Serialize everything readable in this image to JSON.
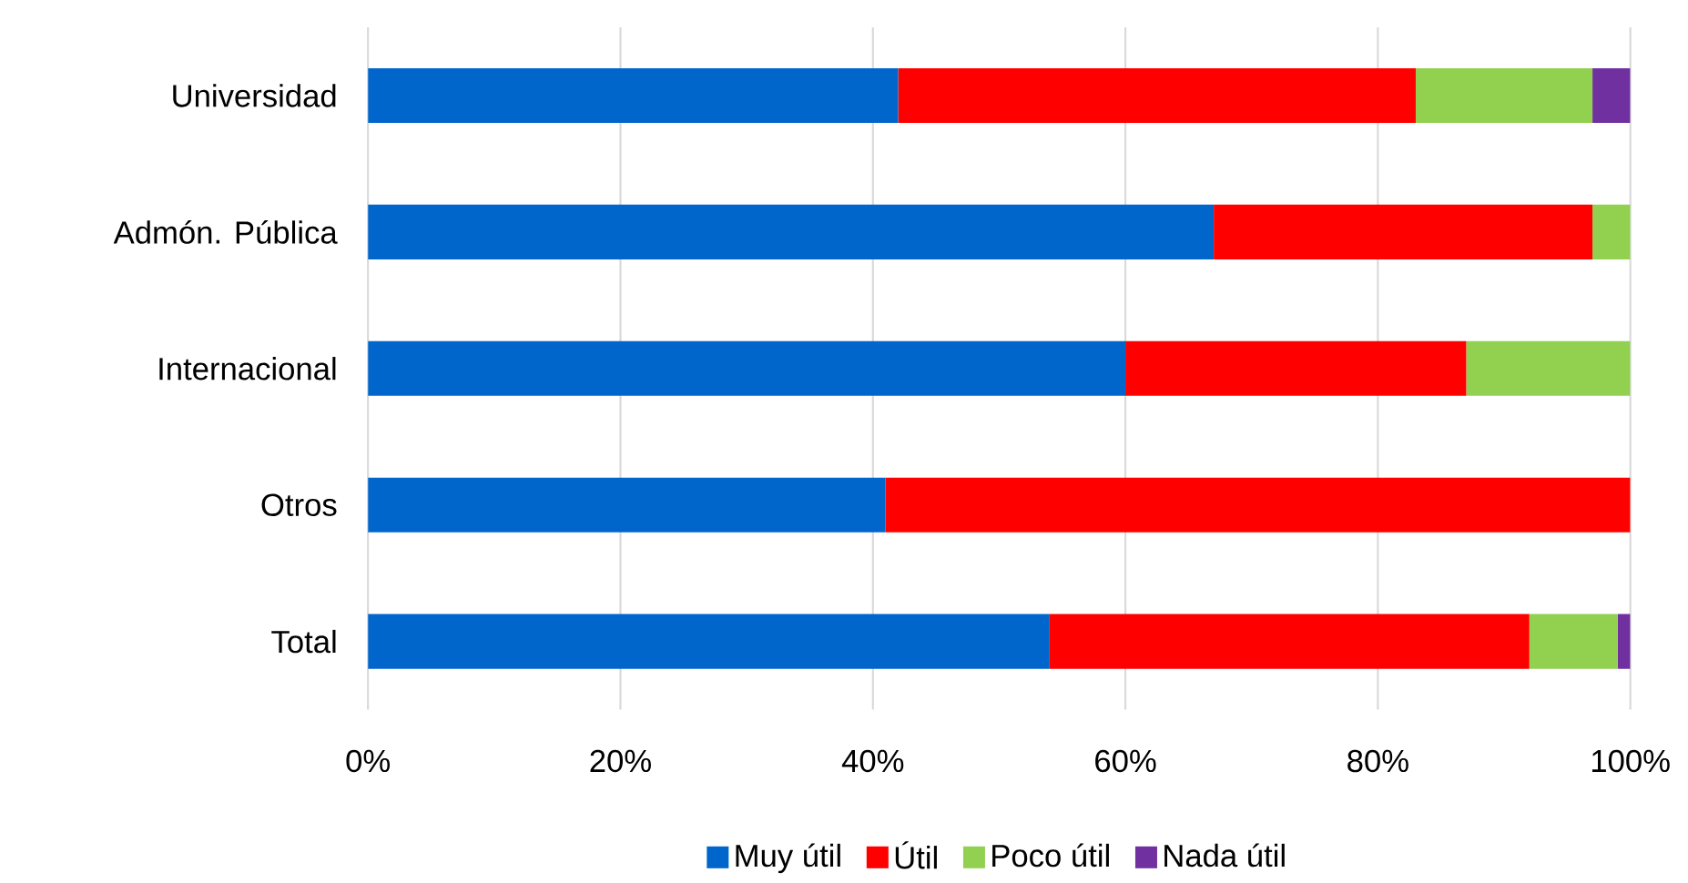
{
  "chart_data": {
    "type": "bar",
    "orientation": "horizontal",
    "stacked": true,
    "categories": [
      "Universidad",
      "Admón. Pública",
      "Internacional",
      "Otros",
      "Total"
    ],
    "series": [
      {
        "name": "Muy útil",
        "color": "#0066cc",
        "values": [
          42,
          67,
          60,
          41,
          54
        ]
      },
      {
        "name": "Útil",
        "color": "#ff0000",
        "values": [
          41,
          30,
          27,
          59,
          38
        ]
      },
      {
        "name": "Poco útil",
        "color": "#92d050",
        "values": [
          14,
          3,
          13,
          0,
          7
        ]
      },
      {
        "name": "Nada útil",
        "color": "#7030a0",
        "values": [
          3,
          0,
          0,
          0,
          1
        ]
      }
    ],
    "xlim": [
      0,
      100
    ],
    "xticks": [
      {
        "value": 0,
        "label": "0%"
      },
      {
        "value": 20,
        "label": "20%"
      },
      {
        "value": 40,
        "label": "40%"
      },
      {
        "value": 60,
        "label": "60%"
      },
      {
        "value": 80,
        "label": "80%"
      },
      {
        "value": 100,
        "label": "100%"
      }
    ],
    "grid": "x",
    "legend": "bottom"
  }
}
